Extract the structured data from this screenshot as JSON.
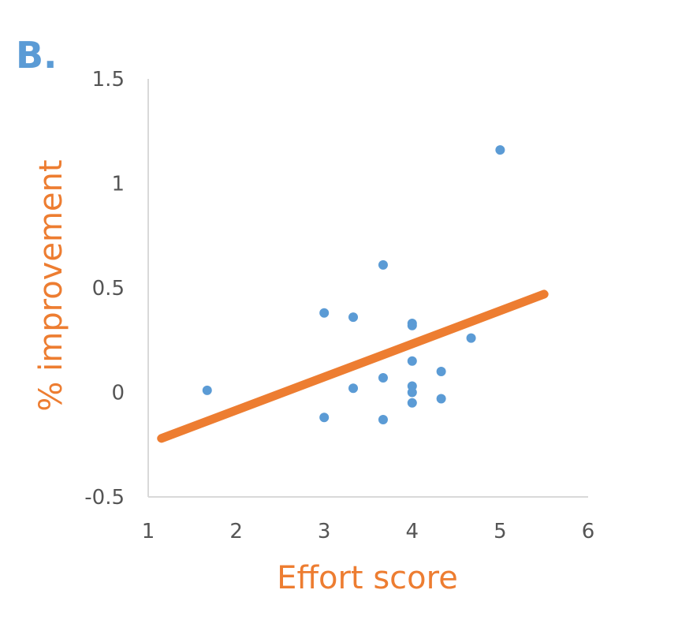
{
  "panel_label": "B.",
  "colors": {
    "points": "#5B9BD5",
    "trendline": "#ED7D31",
    "panel_label": "#5B9BD5",
    "axis_title": "#ED7D31",
    "axis_line": "#D9D9D9",
    "tick_text": "#595959"
  },
  "chart_data": {
    "type": "scatter",
    "xlabel": "Effort score",
    "ylabel": "% improvement",
    "xlim": [
      1,
      6
    ],
    "ylim": [
      -0.5,
      1.5
    ],
    "xticks": [
      1,
      2,
      3,
      4,
      5,
      6
    ],
    "yticks": [
      {
        "value": 1.5,
        "label": "1.5"
      },
      {
        "value": 1,
        "label": "1"
      },
      {
        "value": 0.5,
        "label": "0.5"
      },
      {
        "value": 0,
        "label": "0"
      },
      {
        "value": -0.5,
        "label": "-0.5"
      }
    ],
    "grid": false,
    "points": [
      {
        "x": 1.67,
        "y": 0.01
      },
      {
        "x": 3.0,
        "y": 0.38
      },
      {
        "x": 3.0,
        "y": -0.12
      },
      {
        "x": 3.33,
        "y": 0.36
      },
      {
        "x": 3.33,
        "y": 0.02
      },
      {
        "x": 3.67,
        "y": 0.61
      },
      {
        "x": 3.67,
        "y": 0.07
      },
      {
        "x": 3.67,
        "y": -0.13
      },
      {
        "x": 4.0,
        "y": 0.33
      },
      {
        "x": 4.0,
        "y": 0.32
      },
      {
        "x": 4.0,
        "y": 0.15
      },
      {
        "x": 4.0,
        "y": 0.03
      },
      {
        "x": 4.0,
        "y": 0.0
      },
      {
        "x": 4.0,
        "y": -0.05
      },
      {
        "x": 4.33,
        "y": 0.1
      },
      {
        "x": 4.33,
        "y": -0.03
      },
      {
        "x": 4.67,
        "y": 0.26
      },
      {
        "x": 5.0,
        "y": 1.16
      }
    ],
    "trendline": {
      "x": [
        1.15,
        5.5
      ],
      "y": [
        -0.22,
        0.47
      ]
    }
  }
}
